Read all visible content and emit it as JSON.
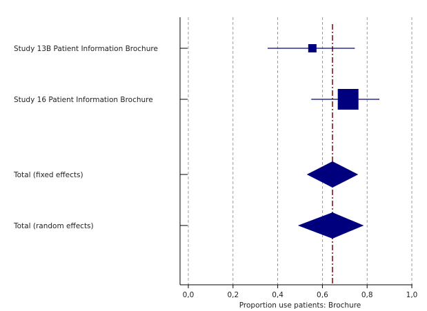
{
  "chart_data": {
    "type": "forest",
    "xlabel": "Proportion use patients: Brochure",
    "xlim": [
      0.0,
      1.0
    ],
    "x_ticks": [
      0.0,
      0.2,
      0.4,
      0.6,
      0.8,
      1.0
    ],
    "x_tick_labels": [
      "0,0",
      "0,2",
      "0,4",
      "0,6",
      "0,8",
      "1,0"
    ],
    "grid": "vertical dashed",
    "reference_line": 0.645,
    "colors": {
      "marker": "#00007f",
      "reference": "#7f0000",
      "grid": "#808080"
    },
    "studies": [
      {
        "label": "Study 13B Patient Information Brochure",
        "estimate": 0.555,
        "ci": [
          0.355,
          0.745
        ],
        "marker": "square",
        "weight": 0.25
      },
      {
        "label": "Study 16 Patient Information Brochure",
        "estimate": 0.715,
        "ci": [
          0.55,
          0.855
        ],
        "marker": "square",
        "weight": 1.0
      }
    ],
    "totals": [
      {
        "label": "Total (fixed effects)",
        "estimate": 0.645,
        "ci": [
          0.53,
          0.76
        ],
        "marker": "diamond"
      },
      {
        "label": "Total (random effects)",
        "estimate": 0.645,
        "ci": [
          0.49,
          0.785
        ],
        "marker": "diamond"
      }
    ]
  }
}
